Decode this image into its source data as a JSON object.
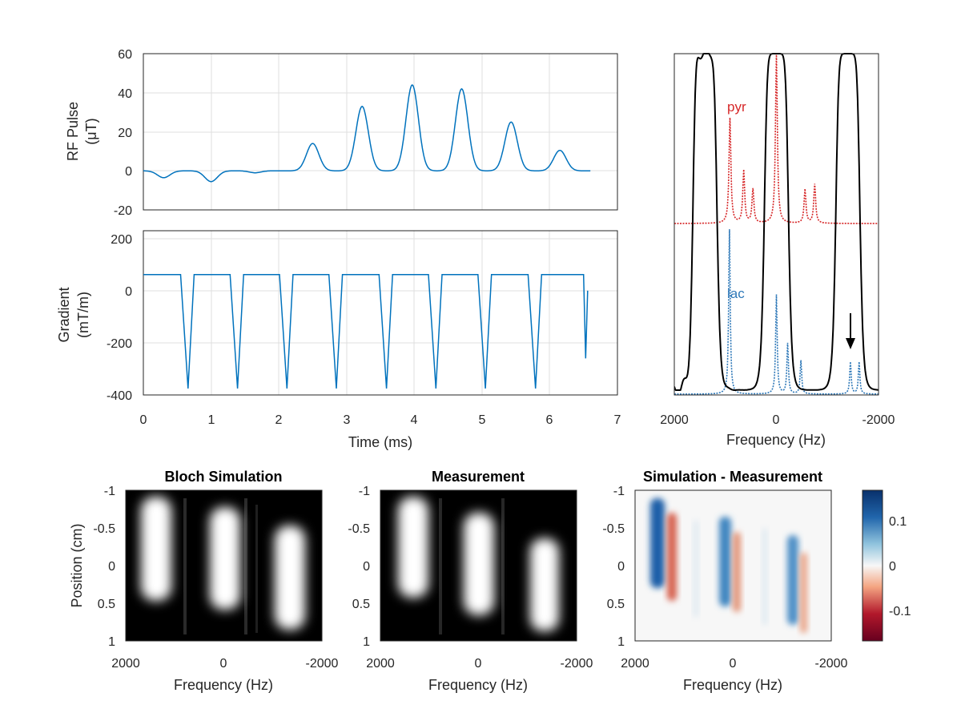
{
  "figure": {
    "rf": {
      "ylabel_line1": "RF Pulse",
      "ylabel_line2": "(μT)",
      "yticks": [
        "60",
        "40",
        "20",
        "0",
        "-20"
      ],
      "ylim": [
        -20,
        60
      ],
      "xlim": [
        0,
        7
      ],
      "color": "#0072bd",
      "lobes": [
        {
          "t": 0.3,
          "a": -3.5,
          "w": 0.13
        },
        {
          "t": 1.0,
          "a": -5.5,
          "w": 0.13
        },
        {
          "t": 1.65,
          "a": -1.0,
          "w": 0.12
        },
        {
          "t": 2.5,
          "a": 14,
          "w": 0.13
        },
        {
          "t": 3.23,
          "a": 33,
          "w": 0.13
        },
        {
          "t": 3.97,
          "a": 44,
          "w": 0.13
        },
        {
          "t": 4.7,
          "a": 42,
          "w": 0.13
        },
        {
          "t": 5.43,
          "a": 25,
          "w": 0.13
        },
        {
          "t": 6.15,
          "a": 10.5,
          "w": 0.13
        }
      ]
    },
    "gradient": {
      "ylabel_line1": "Gradient",
      "ylabel_line2": "(mT/m)",
      "yticks": [
        "200",
        "0",
        "-200",
        "-400"
      ],
      "xticks": [
        "0",
        "1",
        "2",
        "3",
        "4",
        "5",
        "6",
        "7"
      ],
      "xlabel": "Time (ms)",
      "ylim": [
        -400,
        230
      ],
      "xlim": [
        0,
        7
      ],
      "plateau": 62,
      "minimum": -375,
      "dips_ms": [
        0.66,
        1.39,
        2.12,
        2.85,
        3.59,
        4.32,
        5.05,
        5.79
      ],
      "end_ms": 6.56,
      "end_value": 0,
      "color": "#0072bd"
    },
    "spectrum": {
      "xlabel": "Frequency (Hz)",
      "xticks": [
        "2000",
        "0",
        "-2000"
      ],
      "pyr_label": "pyr",
      "lac_label": "lac",
      "pyr_color": "#d62728",
      "lac_color": "#2e78b8",
      "profile_color": "#000000",
      "passbands_hz": [
        1400,
        0,
        -1400
      ],
      "pyr_peaks": [
        {
          "hz": 0,
          "h": 1.0
        },
        {
          "hz": 910,
          "h": 0.62
        },
        {
          "hz": 640,
          "h": 0.31
        },
        {
          "hz": 460,
          "h": 0.2
        },
        {
          "hz": -560,
          "h": 0.2
        },
        {
          "hz": -750,
          "h": 0.23
        }
      ],
      "lac_peaks": [
        {
          "hz": 0,
          "h": 0.59
        },
        {
          "hz": 920,
          "h": 0.98
        },
        {
          "hz": -220,
          "h": 0.3
        },
        {
          "hz": -480,
          "h": 0.2
        },
        {
          "hz": -1450,
          "h": 0.19
        },
        {
          "hz": -1620,
          "h": 0.19
        }
      ]
    },
    "bottom": {
      "panel_titles": [
        "Bloch Simulation",
        "Measurement",
        "Simulation - Measurement"
      ],
      "ylabel": "Position (cm)",
      "xlabel": "Frequency (Hz)",
      "yticks": [
        "-1",
        "-0.5",
        "0",
        "0.5",
        "1"
      ],
      "xticks": [
        "2000",
        "0",
        "-2000"
      ],
      "colorbar_ticks": [
        "0.1",
        "0",
        "-0.1"
      ],
      "colorbar_range": [
        -0.16,
        0.16
      ]
    }
  }
}
